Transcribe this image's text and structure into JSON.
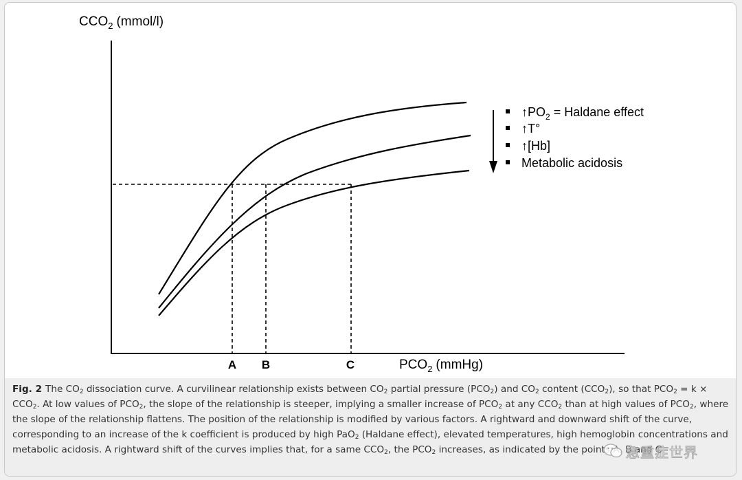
{
  "diagram": {
    "y_axis_label": "CCO",
    "y_axis_sub": "2",
    "y_axis_unit": "(mmol/l)",
    "x_axis_label": "PCO",
    "x_axis_sub": "2",
    "x_axis_unit": "(mmHg)",
    "markers": [
      "A",
      "B",
      "C"
    ],
    "legend": {
      "item1_arrow": "↑",
      "item1_text": "PO",
      "item1_sub": "2",
      "item1_rest": "= Haldane effect",
      "item2": "↑T°",
      "item3": "↑[Hb]",
      "item4": "Metabolic acidosis"
    },
    "colors": {
      "line": "#000000",
      "caption_bg": "#eeeeee",
      "caption_text": "#333333"
    }
  },
  "caption": {
    "label": "Fig. 2",
    "text": {
      "s1": "The CO",
      "s2": " dissociation curve. A curvilinear relationship exists between CO",
      "s3": " partial pressure (PCO",
      "s4": ") and CO",
      "s5": " content (CCO",
      "s6": "), so that PCO",
      "s7": " = k × CCO",
      "s8": ". At low values of PCO",
      "s9": ", the slope of the relationship is steeper, implying a smaller increase of PCO",
      "s10": " at any CCO",
      "s11": " than at high values of PCO",
      "s12": ", where the slope of the relationship flattens. The position of the relationship is modified by various factors. A rightward and downward shift of the curve, corresponding to an increase of the k coefficient is produced by high PaO",
      "s13": " (Haldane effect), elevated temperatures, high hemoglobin concentrations and metabolic acidosis. A rightward shift of the curves implies that, for a same CCO",
      "s14": ", the PCO",
      "s15": " increases, as indicated by the points A, B and C",
      "sub": "2"
    }
  },
  "watermark": {
    "text": "急重症世界"
  }
}
